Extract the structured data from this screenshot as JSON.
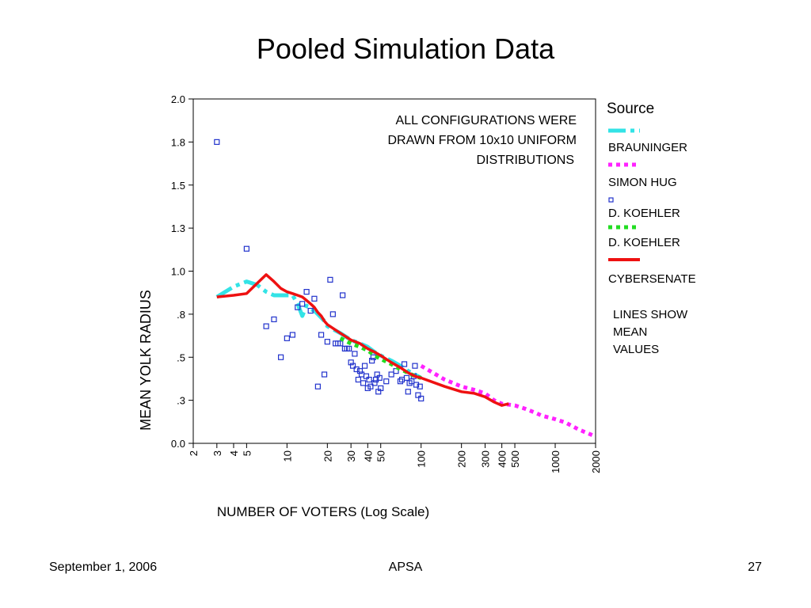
{
  "slide": {
    "title": "Pooled Simulation Data",
    "footer_left": "September 1, 2006",
    "footer_center": "APSA",
    "footer_right": "27"
  },
  "chart_data": {
    "type": "scatter",
    "title": "",
    "xlabel": "NUMBER OF VOTERS (Log Scale)",
    "ylabel": "MEAN YOLK RADIUS",
    "x_scale": "log",
    "xlim": [
      2,
      2000
    ],
    "ylim": [
      0.0,
      2.0
    ],
    "x_ticks": [
      2,
      3,
      4,
      5,
      10,
      20,
      30,
      40,
      50,
      100,
      200,
      300,
      400,
      500,
      1000,
      2000
    ],
    "x_tick_labels": [
      "2",
      "3",
      "4",
      "5",
      "10",
      "20",
      "30",
      "40",
      "50",
      "100",
      "200",
      "300",
      "400",
      "500",
      "1000",
      "2000"
    ],
    "y_ticks": [
      0.0,
      0.25,
      0.5,
      0.75,
      1.0,
      1.25,
      1.5,
      1.75,
      2.0
    ],
    "y_tick_labels": [
      "0.0",
      ".3",
      ".5",
      ".8",
      "1.0",
      "1.3",
      "1.5",
      "1.8",
      "2.0"
    ],
    "grid": false,
    "legend_position": "right",
    "legend_title": "Source",
    "annotation": [
      "ALL CONFIGURATIONS WERE",
      "DRAWN FROM 10x10 UNIFORM",
      "DISTRIBUTIONS"
    ],
    "legend_note": [
      "LINES SHOW",
      "MEAN",
      "VALUES"
    ],
    "series": [
      {
        "name": "BRAUNINGER",
        "kind": "line",
        "style": "dashdot",
        "color": "#33e3e6",
        "x": [
          3,
          4,
          5,
          6,
          7,
          8,
          9,
          10,
          11,
          12,
          13,
          14,
          15,
          16,
          17,
          18,
          19,
          20,
          25,
          30,
          35,
          40,
          45,
          50,
          60,
          70,
          80,
          90,
          100
        ],
        "y": [
          0.85,
          0.91,
          0.94,
          0.92,
          0.88,
          0.86,
          0.86,
          0.86,
          0.86,
          0.81,
          0.74,
          0.8,
          0.78,
          0.77,
          0.75,
          0.73,
          0.71,
          0.68,
          0.64,
          0.6,
          0.58,
          0.56,
          0.53,
          0.51,
          0.48,
          0.45,
          0.42,
          0.4,
          0.38
        ]
      },
      {
        "name": "SIMON HUG",
        "kind": "line",
        "style": "dotted",
        "color": "#ff22ff",
        "x": [
          100,
          150,
          200,
          250,
          300,
          350,
          400,
          500,
          600,
          700,
          800,
          900,
          1000,
          1200,
          1500,
          2000
        ],
        "y": [
          0.45,
          0.37,
          0.33,
          0.31,
          0.29,
          0.25,
          0.23,
          0.22,
          0.2,
          0.18,
          0.16,
          0.15,
          0.14,
          0.12,
          0.08,
          0.04
        ]
      },
      {
        "name": "D. KOEHLER",
        "kind": "points",
        "marker": "square",
        "color": "#2233cc",
        "x": [
          3,
          5,
          7,
          8,
          9,
          10,
          11,
          12,
          13,
          14,
          15,
          16,
          17,
          18,
          19,
          20,
          21,
          22,
          23,
          24,
          25,
          26,
          27,
          28,
          29,
          30,
          31,
          32,
          33,
          34,
          35,
          36,
          37,
          38,
          39,
          40,
          41,
          42,
          43,
          44,
          45,
          46,
          47,
          48,
          49,
          50,
          55,
          60,
          65,
          70,
          72,
          75,
          78,
          80,
          82,
          85,
          88,
          90,
          92,
          95,
          98,
          100
        ],
        "y": [
          1.75,
          1.13,
          0.68,
          0.72,
          0.5,
          0.61,
          0.63,
          0.79,
          0.81,
          0.88,
          0.77,
          0.84,
          0.33,
          0.63,
          0.4,
          0.59,
          0.95,
          0.75,
          0.58,
          0.58,
          0.58,
          0.86,
          0.55,
          0.55,
          0.55,
          0.47,
          0.45,
          0.52,
          0.43,
          0.37,
          0.42,
          0.4,
          0.35,
          0.45,
          0.39,
          0.32,
          0.37,
          0.33,
          0.48,
          0.5,
          0.35,
          0.37,
          0.4,
          0.3,
          0.38,
          0.32,
          0.36,
          0.4,
          0.42,
          0.36,
          0.37,
          0.46,
          0.38,
          0.3,
          0.35,
          0.36,
          0.39,
          0.45,
          0.34,
          0.28,
          0.33,
          0.26
        ]
      },
      {
        "name": "D. KOEHLER",
        "kind": "line",
        "style": "dotted",
        "color": "#22dd22",
        "x": [
          25,
          30,
          35,
          40,
          45,
          50,
          60,
          70,
          80,
          90,
          100
        ],
        "y": [
          0.61,
          0.58,
          0.56,
          0.54,
          0.51,
          0.49,
          0.46,
          0.43,
          0.41,
          0.39,
          0.38
        ]
      },
      {
        "name": "CYBERSENATE",
        "kind": "line",
        "style": "solid",
        "color": "#ee1111",
        "x": [
          3,
          4,
          5,
          6,
          7,
          8,
          9,
          10,
          11,
          12,
          13,
          14,
          15,
          16,
          17,
          18,
          19,
          20,
          25,
          30,
          35,
          40,
          45,
          50,
          60,
          70,
          80,
          90,
          100,
          150,
          200,
          250,
          300,
          350,
          400,
          450
        ],
        "y": [
          0.85,
          0.86,
          0.87,
          0.93,
          0.98,
          0.94,
          0.9,
          0.88,
          0.87,
          0.86,
          0.85,
          0.83,
          0.81,
          0.79,
          0.76,
          0.74,
          0.71,
          0.69,
          0.64,
          0.6,
          0.58,
          0.55,
          0.53,
          0.51,
          0.47,
          0.44,
          0.41,
          0.39,
          0.38,
          0.33,
          0.3,
          0.29,
          0.27,
          0.24,
          0.22,
          0.23
        ]
      }
    ]
  }
}
